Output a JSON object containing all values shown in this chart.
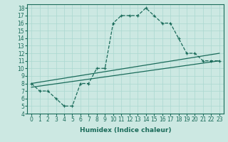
{
  "xlabel": "Humidex (Indice chaleur)",
  "background_color": "#cce8e2",
  "line_color": "#1a6b5a",
  "grid_color": "#aad8d0",
  "x_values": [
    0,
    1,
    2,
    3,
    4,
    5,
    6,
    7,
    8,
    9,
    10,
    11,
    12,
    13,
    14,
    15,
    16,
    17,
    18,
    19,
    20,
    21,
    22,
    23
  ],
  "y_main": [
    8,
    7,
    7,
    6,
    5,
    5,
    8,
    8,
    10,
    10,
    16,
    17,
    17,
    17,
    18,
    17,
    16,
    16,
    14,
    12,
    12,
    11,
    11,
    11
  ],
  "upper_start": 8.0,
  "upper_end": 12.0,
  "lower_start": 7.5,
  "lower_end": 11.0,
  "ylim": [
    4,
    18.5
  ],
  "xlim": [
    -0.5,
    23.5
  ],
  "yticks": [
    4,
    5,
    6,
    7,
    8,
    9,
    10,
    11,
    12,
    13,
    14,
    15,
    16,
    17,
    18
  ],
  "xticks": [
    0,
    1,
    2,
    3,
    4,
    5,
    6,
    7,
    8,
    9,
    10,
    11,
    12,
    13,
    14,
    15,
    16,
    17,
    18,
    19,
    20,
    21,
    22,
    23
  ],
  "tick_fontsize": 5.5,
  "xlabel_fontsize": 6.5
}
